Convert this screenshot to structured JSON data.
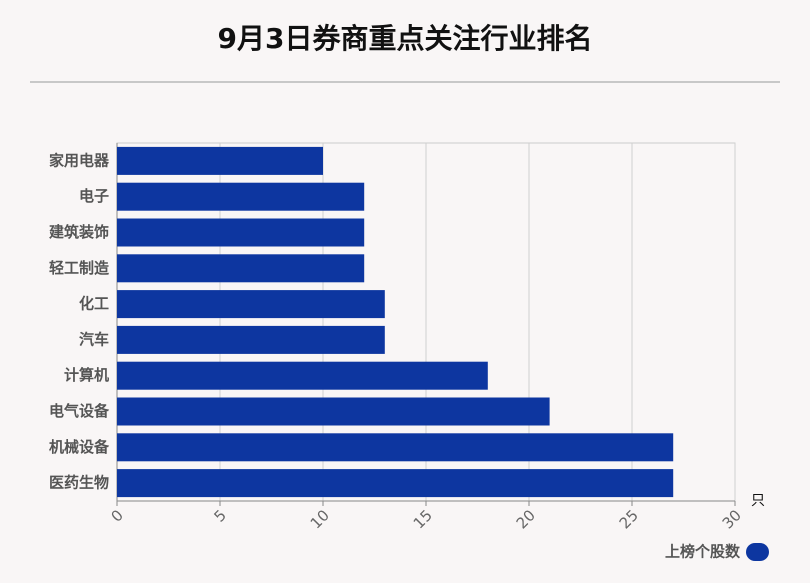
{
  "chart_data": {
    "type": "hbar",
    "title": "9月3日券商重点关注行业排名",
    "categories": [
      "家用电器",
      "电子",
      "建筑装饰",
      "轻工制造",
      "化工",
      "汽车",
      "计算机",
      "电气设备",
      "机械设备",
      "医药生物"
    ],
    "series": [
      {
        "name": "上榜个股数",
        "color": "#0d36a0",
        "values": [
          10,
          12,
          12,
          12,
          13,
          13,
          18,
          21,
          27,
          27
        ]
      }
    ],
    "xlim": [
      0,
      30
    ],
    "xticks": [
      0,
      5,
      10,
      15,
      20,
      25,
      30
    ],
    "x_label": "只",
    "grid": true,
    "legend": "bottom-right"
  }
}
